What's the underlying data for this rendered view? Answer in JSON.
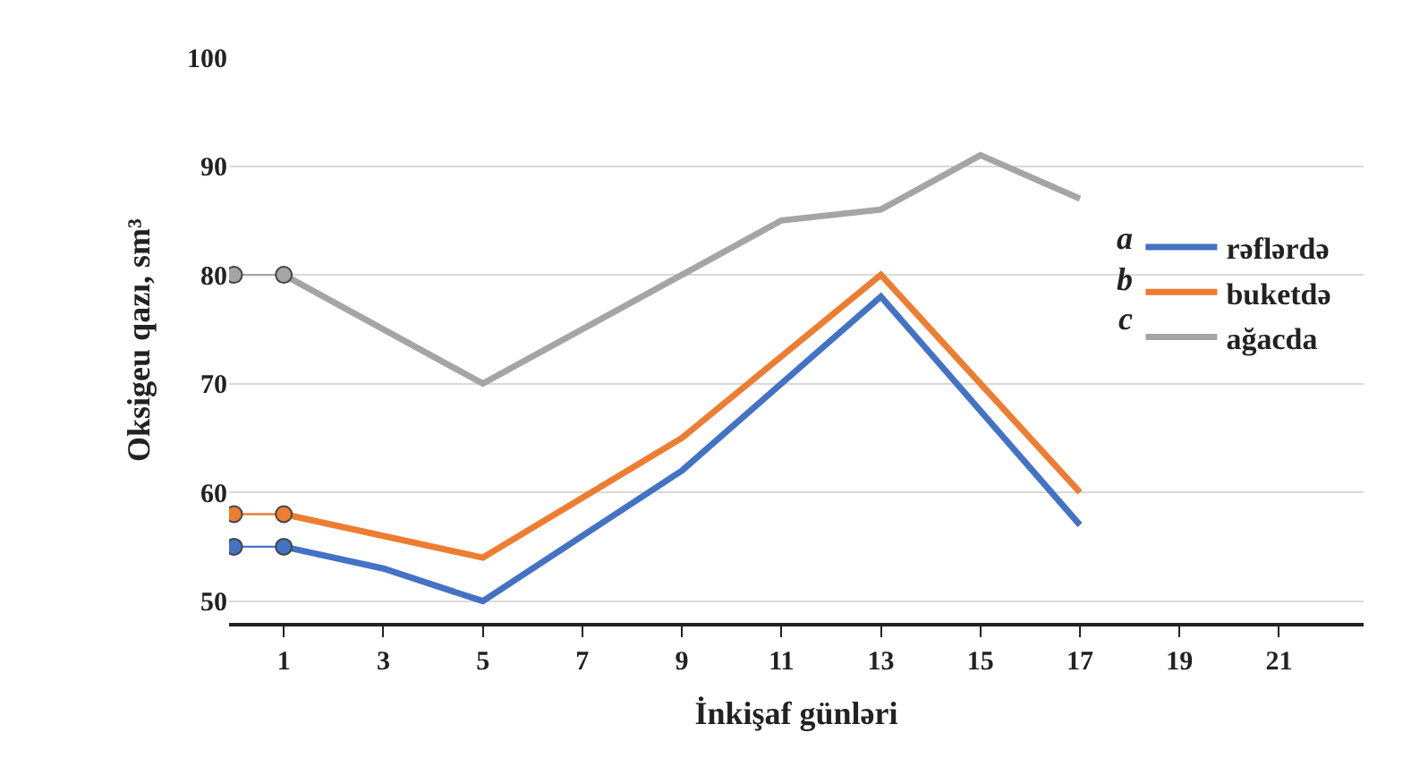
{
  "chart_data": {
    "type": "line",
    "xlabel": "İnkişaf günləri",
    "ylabel": "Oksigeu qazı, sm³",
    "xlim": [
      -0.1,
      22.7
    ],
    "xticks": [
      1,
      3,
      5,
      7,
      9,
      11,
      13,
      15,
      17,
      19,
      21
    ],
    "ylim": [
      48,
      100
    ],
    "yticks": [
      50,
      60,
      70,
      80,
      90,
      100
    ],
    "grid": "y",
    "legend": "right",
    "line_style": "solid",
    "annotations": [
      "a",
      "b",
      "c"
    ],
    "series": [
      {
        "name": "rəflərdə",
        "color": "#4472c4",
        "x": [
          1,
          3,
          5,
          9,
          13,
          17
        ],
        "values": [
          55,
          53,
          50,
          62,
          78,
          57
        ]
      },
      {
        "name": "buketdə",
        "color": "#ed7d31",
        "x": [
          1,
          5,
          9,
          13,
          17
        ],
        "values": [
          58,
          54,
          65,
          80,
          60
        ]
      },
      {
        "name": "ağacda",
        "color": "#a5a5a5",
        "x": [
          1,
          5,
          9,
          11,
          13,
          15,
          17
        ],
        "values": [
          80,
          70,
          80,
          85,
          86,
          91,
          87
        ]
      },
      {
        "color": "#4472c4",
        "marker": "circle",
        "x": [
          0,
          1
        ],
        "values": [
          55,
          55
        ]
      },
      {
        "color": "#ed7d31",
        "marker": "circle",
        "x": [
          0,
          1
        ],
        "values": [
          58,
          58
        ]
      },
      {
        "color": "#a5a5a5",
        "marker": "circle",
        "x": [
          0,
          1
        ],
        "values": [
          80,
          80
        ]
      }
    ]
  }
}
